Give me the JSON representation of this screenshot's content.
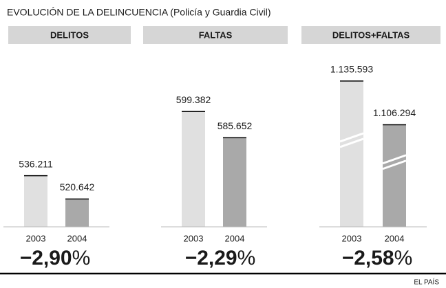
{
  "title": "EVOLUCIÓN DE LA DELINCUENCIA (Policía y Guardia Civil)",
  "source": "EL PAÍS",
  "chart_data": [
    {
      "type": "bar",
      "title": "DELITOS",
      "categories": [
        "2003",
        "2004"
      ],
      "values": [
        536211,
        520642
      ],
      "value_labels": [
        "536.211",
        "520.642"
      ],
      "colors": [
        "#e0e0e0",
        "#a9a9a9"
      ],
      "ylim": [
        502000,
        617000
      ],
      "change": "−2,90",
      "change_unit": "%"
    },
    {
      "type": "bar",
      "title": "FALTAS",
      "categories": [
        "2003",
        "2004"
      ],
      "values": [
        599382,
        585652
      ],
      "value_labels": [
        "599.382",
        "585.652"
      ],
      "colors": [
        "#e0e0e0",
        "#a9a9a9"
      ],
      "ylim": [
        539000,
        629000
      ],
      "change": "−2,29",
      "change_unit": "%"
    },
    {
      "type": "bar",
      "title": "DELITOS+FALTAS",
      "categories": [
        "2003",
        "2004"
      ],
      "values": [
        1135593,
        1106294
      ],
      "value_labels": [
        "1.135.593",
        "1.106.294"
      ],
      "colors": [
        "#e0e0e0",
        "#a9a9a9"
      ],
      "ylim": [
        1038000,
        1153000
      ],
      "axis_break": true,
      "change": "−2,58",
      "change_unit": "%"
    }
  ]
}
